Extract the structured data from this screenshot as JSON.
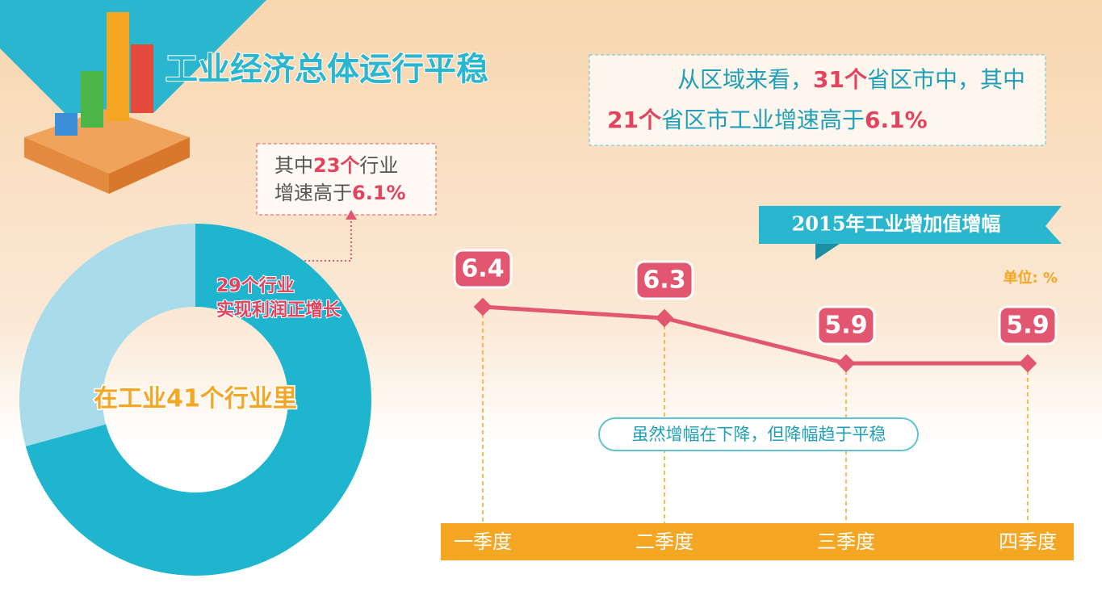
{
  "title": "工业经济总体运行平稳",
  "region_note": {
    "lines": [
      [
        "从区域来看，",
        "31个",
        "省区市中，其中"
      ],
      [
        "21个",
        "省区市工业增速高于",
        "6.1%"
      ]
    ]
  },
  "chart_data": [
    {
      "type": "pie",
      "values": [
        29,
        12
      ],
      "colors": [
        "#1fb5cf",
        "#a8dcea"
      ],
      "categories": [
        [
          "29个行业",
          "实现利润正增长"
        ],
        null
      ],
      "center_label": "在工业41个行业里",
      "annotation": [
        [
          "其中",
          "23个",
          "行业"
        ],
        [
          "增速高于",
          "6.1%"
        ]
      ]
    },
    {
      "type": "line",
      "title": "2015年工业增加值增幅",
      "unit": "单位: %",
      "categories": [
        "一季度",
        "二季度",
        "三季度",
        "四季度"
      ],
      "values": [
        6.4,
        6.3,
        5.9,
        5.9
      ],
      "color": "#e2566f",
      "note": "虽然增幅在下降，但降幅趋于平稳"
    }
  ]
}
